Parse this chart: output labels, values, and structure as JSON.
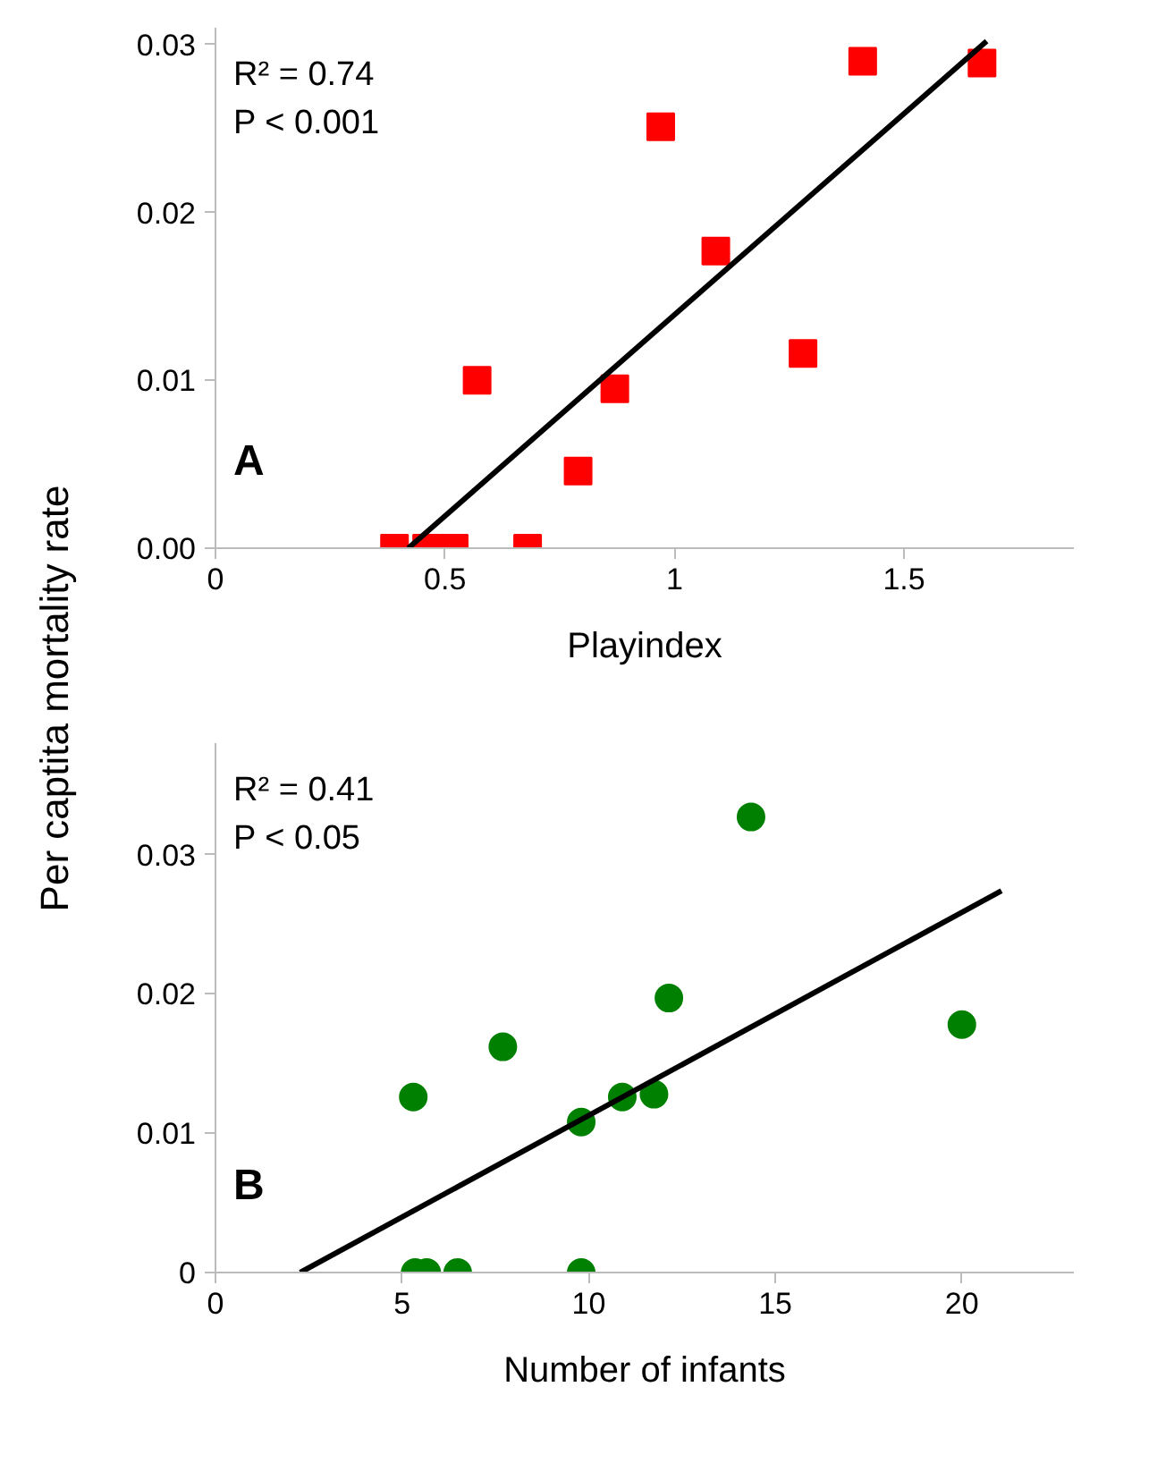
{
  "chart_data": [
    {
      "type": "scatter",
      "xlabel": "Playindex",
      "ylabel": "Per captita mortality rate",
      "annotations": [
        "R² = 0.74",
        "P < 0.001",
        "A"
      ],
      "xlim": [
        0,
        1.87
      ],
      "ylim": [
        0,
        0.031
      ],
      "xticks": [
        0,
        0.5,
        1,
        1.5
      ],
      "yticks": [
        {
          "value": 0,
          "label": "0.00"
        },
        0.01,
        0.02,
        0.03
      ],
      "grid": false,
      "series": [
        {
          "color": "#ff0000",
          "marker": "square",
          "x": [
            0.39,
            0.46,
            0.52,
            0.68,
            0.57,
            0.79,
            0.87,
            0.97,
            1.09,
            1.28,
            1.41,
            1.67
          ],
          "values": [
            0,
            0,
            0,
            0,
            0.01,
            0.0046,
            0.0095,
            0.0251,
            0.0177,
            0.0116,
            0.029,
            0.0289
          ]
        },
        {
          "type": "line",
          "color": "#000000",
          "line_style": "solid",
          "x": [
            0.42,
            1.68
          ],
          "values": [
            0,
            0.0302
          ]
        }
      ]
    },
    {
      "type": "scatter",
      "xlabel": "Number of infants",
      "annotations": [
        "R² = 0.41",
        "P  < 0.05",
        "B"
      ],
      "xlim": [
        0,
        23
      ],
      "ylim": [
        0,
        0.038
      ],
      "xticks": [
        0,
        5,
        10,
        15,
        20
      ],
      "yticks": [
        0,
        0.01,
        0.02,
        0.03
      ],
      "grid": false,
      "series": [
        {
          "color": "#008000",
          "marker": "circle",
          "x": [
            5.3,
            5.35,
            5.66,
            6.49,
            9.8,
            7.7,
            9.8,
            10.9,
            11.75,
            12.15,
            14.35,
            20.0
          ],
          "values": [
            0.0126,
            0,
            0,
            0,
            0,
            0.0162,
            0.0108,
            0.0126,
            0.0128,
            0.0197,
            0.0327,
            0.0178
          ]
        },
        {
          "type": "line",
          "color": "#000000",
          "line_style": "solid",
          "x": [
            2.27,
            21.06
          ],
          "values": [
            0,
            0.0274
          ]
        }
      ]
    }
  ]
}
